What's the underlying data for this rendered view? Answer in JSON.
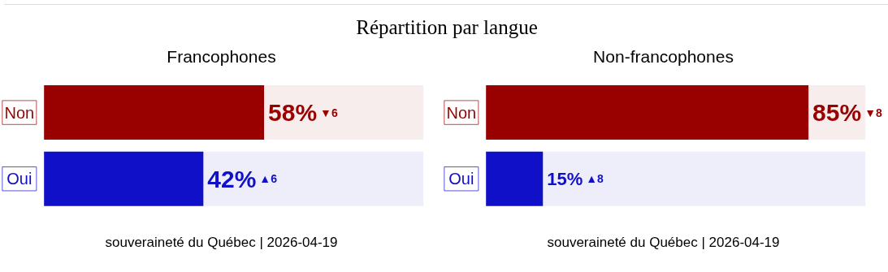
{
  "chart_data": [
    {
      "type": "bar",
      "orientation": "horizontal",
      "title": "Répartition par langue",
      "subtitle": "Francophones",
      "categories": [
        "Non",
        "Oui"
      ],
      "values": [
        58,
        42
      ],
      "colors": [
        "#990000",
        "#1010c8"
      ],
      "xlim": [
        0,
        100
      ],
      "value_labels": [
        "58%",
        "42%"
      ],
      "tick_labels": false,
      "grid": false,
      "annotations": [
        "▼6",
        "▲6",
        "souveraineté du Québec | 2026-04-19"
      ]
    },
    {
      "type": "bar",
      "orientation": "horizontal",
      "title": "Non-francophones",
      "categories": [
        "Non",
        "Oui"
      ],
      "values": [
        85,
        15
      ],
      "colors": [
        "#990000",
        "#1010c8"
      ],
      "xlim": [
        0,
        100
      ],
      "value_labels": [
        "85%",
        "15%"
      ],
      "tick_labels": false,
      "grid": false,
      "annotations": [
        "▼8",
        "▲8",
        "souveraineté du Québec | 2026-04-19"
      ]
    }
  ]
}
